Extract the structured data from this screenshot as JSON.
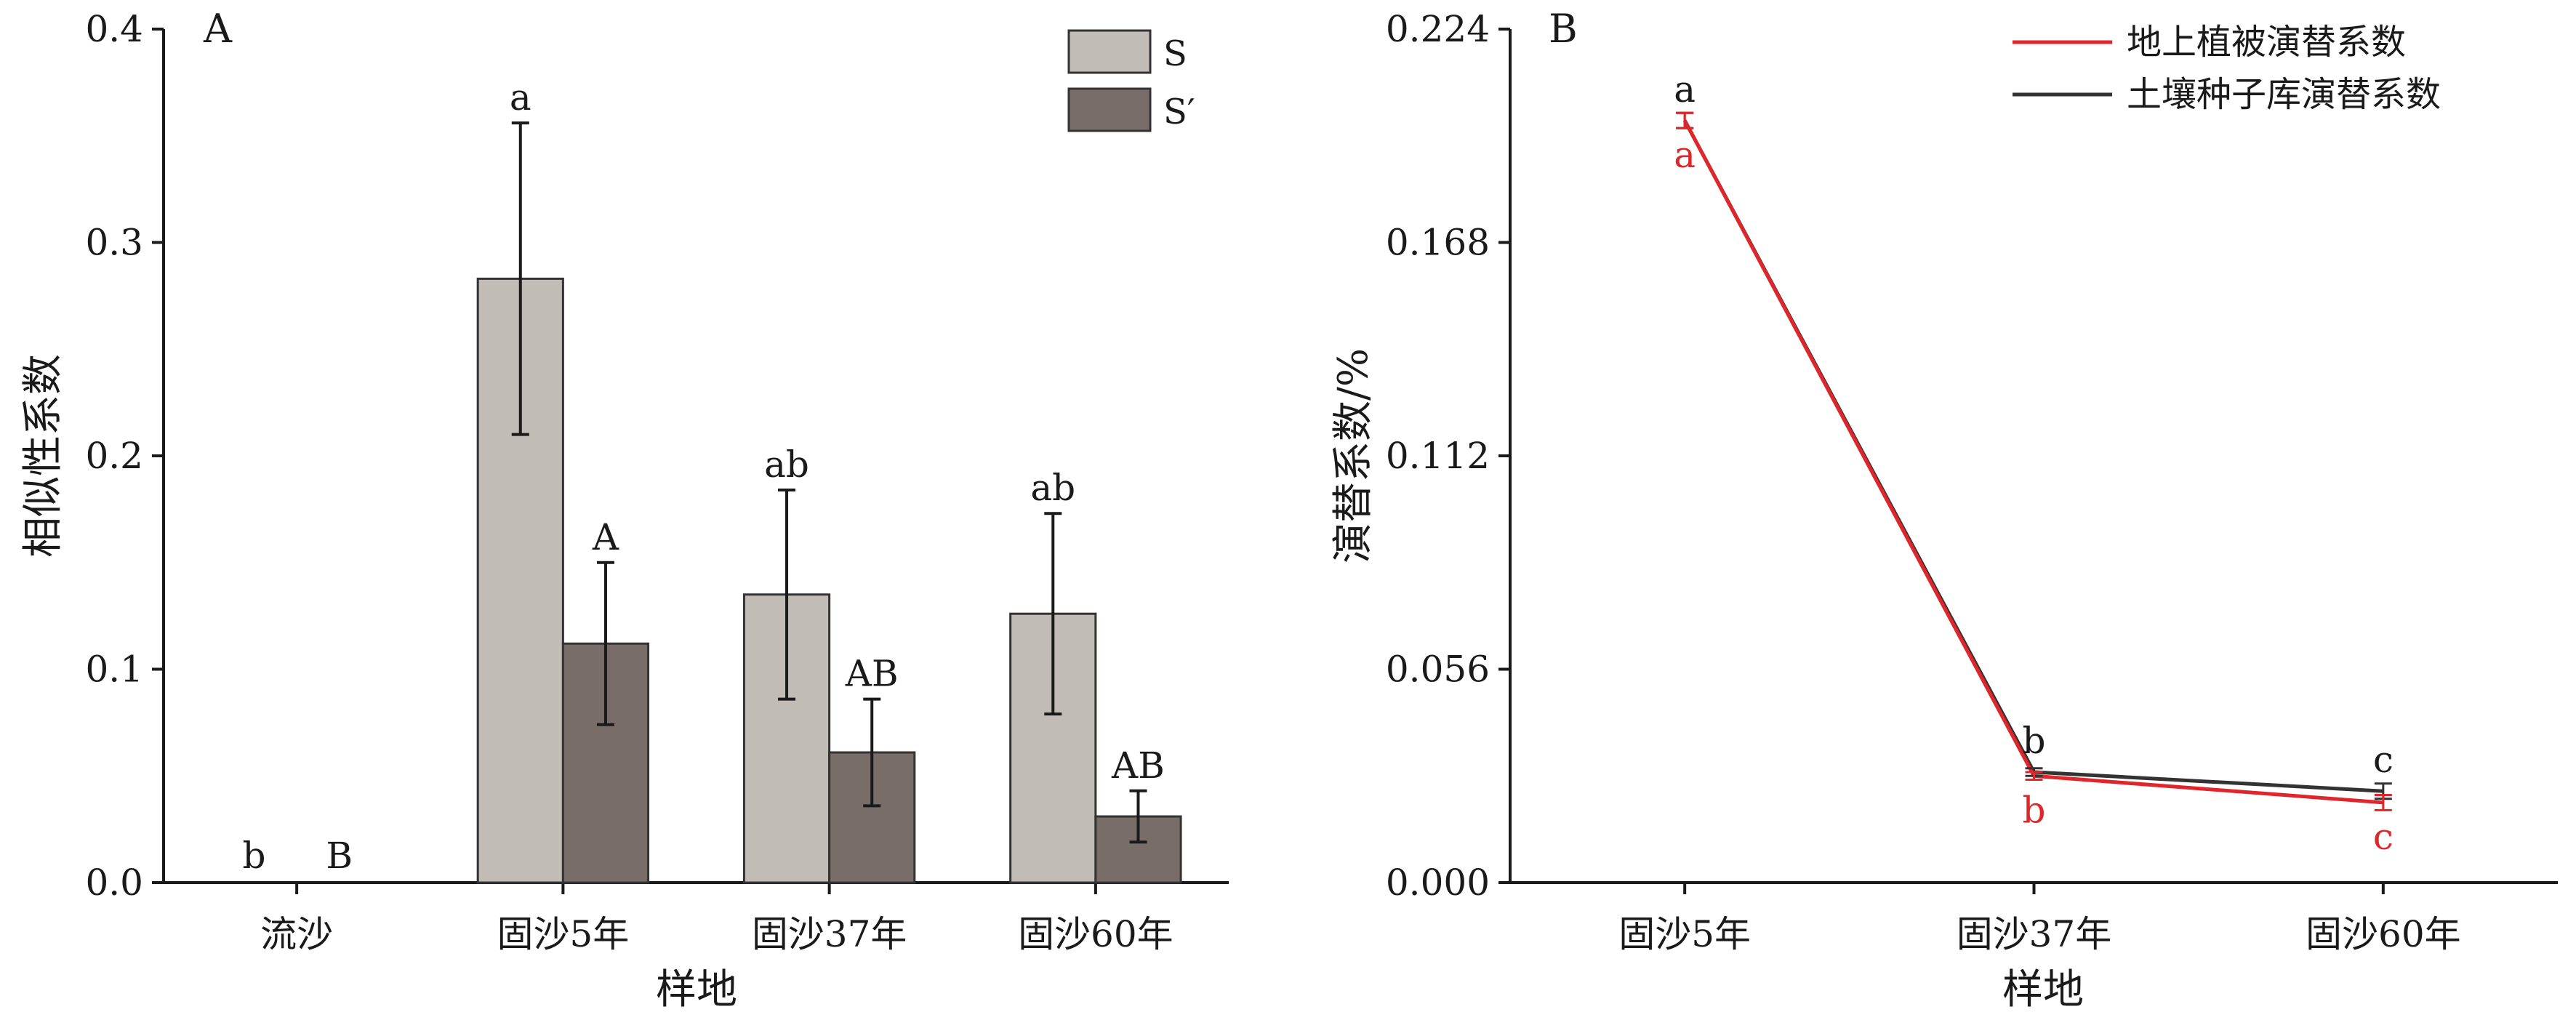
{
  "chart_data": [
    {
      "type": "bar",
      "panel_label": "A",
      "categories": [
        "流沙",
        "固沙5年",
        "固沙37年",
        "固沙60年"
      ],
      "xlabel": "样地",
      "ylabel": "相似性系数",
      "ylim": [
        0,
        0.4
      ],
      "yticks": [
        "0.0",
        "0.1",
        "0.2",
        "0.3",
        "0.4"
      ],
      "legend_position": "top-right",
      "grid": false,
      "series": [
        {
          "name": "S",
          "color": "#c2bcb6",
          "values": [
            0,
            0.283,
            0.135,
            0.126
          ],
          "error": [
            0,
            0.073,
            0.049,
            0.047
          ],
          "letters": [
            "b",
            "a",
            "ab",
            "ab"
          ]
        },
        {
          "name": "S′",
          "color": "#786d68",
          "values": [
            0,
            0.112,
            0.061,
            0.031
          ],
          "error": [
            0,
            0.038,
            0.025,
            0.012
          ],
          "letters": [
            "B",
            "A",
            "AB",
            "AB"
          ]
        }
      ]
    },
    {
      "type": "line",
      "panel_label": "B",
      "categories": [
        "固沙5年",
        "固沙37年",
        "固沙60年"
      ],
      "xlabel": "样地",
      "ylabel": "演替系数/%",
      "ylim": [
        0,
        0.224
      ],
      "yticks": [
        "0.000",
        "0.056",
        "0.112",
        "0.168",
        "0.224"
      ],
      "legend_position": "top-right",
      "grid": false,
      "series": [
        {
          "name": "地上植被演替系数",
          "color": "#e0262b",
          "values": [
            0.2,
            0.028,
            0.021
          ],
          "error": [
            0.002,
            0.001,
            0.002
          ],
          "letters": [
            "a",
            "b",
            "c"
          ]
        },
        {
          "name": "土壤种子库演替系数",
          "color": "#333333",
          "values": [
            0.2,
            0.029,
            0.024
          ],
          "error": [
            0.002,
            0.001,
            0.002
          ],
          "letters": [
            "a",
            "b",
            "c"
          ]
        }
      ]
    }
  ]
}
